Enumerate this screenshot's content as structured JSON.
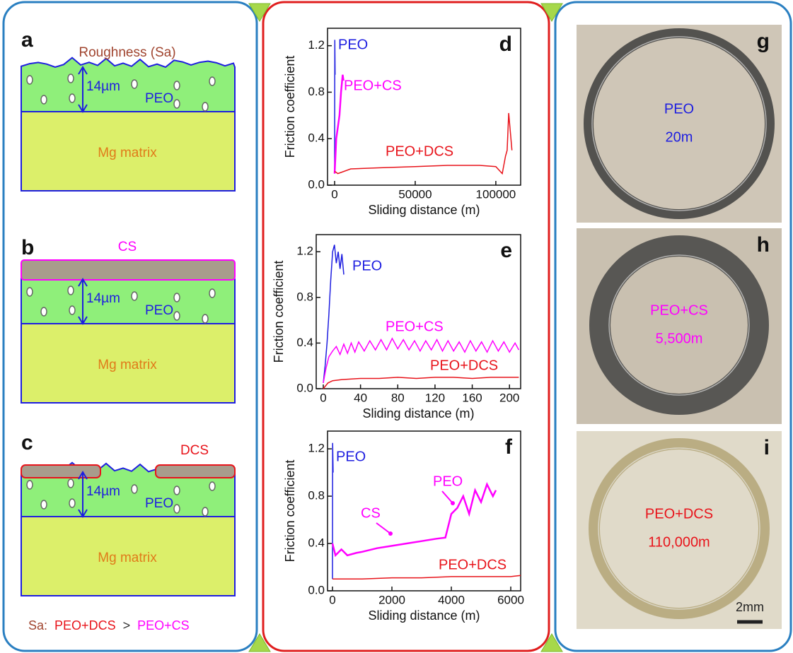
{
  "chart_data": [
    {
      "type": "line",
      "label": "d",
      "x_label": "Sliding distance (m)",
      "y_label": "Friction coefficient",
      "xlim": [
        -4400,
        115400
      ],
      "ylim": [
        0,
        1.35
      ],
      "xticks": [
        0,
        50000,
        100000
      ],
      "yticks": [
        {
          "value": 0,
          "label": "0.0"
        },
        0.4,
        0.8,
        1.2
      ],
      "series": [
        {
          "name": "PEO",
          "color": "#1e1ee0",
          "x": [
            0,
            100,
            300
          ],
          "values": [
            0.1,
            1.25,
            0.95
          ]
        },
        {
          "name": "PEO+CS",
          "color": "#ff00ff",
          "x": [
            0,
            500,
            1000,
            2000,
            3000,
            4000,
            5000,
            5500
          ],
          "values": [
            0.1,
            0.25,
            0.4,
            0.5,
            0.6,
            0.8,
            0.95,
            0.9
          ]
        },
        {
          "name": "PEO+DCS",
          "color": "#e8141b",
          "x": [
            0,
            2000,
            10000,
            30000,
            50000,
            70000,
            90000,
            100000,
            104000,
            106000,
            107000,
            108000,
            110000
          ],
          "values": [
            0.12,
            0.1,
            0.14,
            0.15,
            0.16,
            0.17,
            0.17,
            0.16,
            0.1,
            0.25,
            0.3,
            0.62,
            0.3
          ]
        }
      ]
    },
    {
      "type": "line",
      "label": "e",
      "x_label": "Sliding distance (m)",
      "y_label": "Friction coefficient",
      "xlim": [
        -7.6,
        212
      ],
      "ylim": [
        0,
        1.35
      ],
      "xticks": [
        0,
        40,
        80,
        120,
        160,
        200
      ],
      "yticks": [
        {
          "value": 0,
          "label": "0.0"
        },
        0.4,
        0.8,
        1.2
      ],
      "series": [
        {
          "name": "PEO",
          "color": "#1e1ee0",
          "x": [
            0,
            2,
            4,
            6,
            8,
            10,
            12,
            14,
            16,
            18,
            20,
            22
          ],
          "values": [
            0.05,
            0.2,
            0.4,
            0.65,
            0.95,
            1.2,
            1.26,
            1.1,
            1.2,
            1.05,
            1.18,
            1.0
          ]
        },
        {
          "name": "PEO+CS",
          "color": "#ff00ff",
          "x": [
            0,
            3,
            6,
            10,
            14,
            18,
            22,
            26,
            30,
            34,
            38,
            44,
            50,
            56,
            62,
            68,
            74,
            80,
            86,
            92,
            98,
            104,
            110,
            116,
            122,
            128,
            134,
            140,
            146,
            152,
            158,
            164,
            170,
            176,
            182,
            188,
            194,
            200,
            206,
            210
          ],
          "values": [
            0.05,
            0.18,
            0.28,
            0.33,
            0.37,
            0.3,
            0.39,
            0.31,
            0.4,
            0.32,
            0.41,
            0.33,
            0.42,
            0.34,
            0.43,
            0.34,
            0.44,
            0.35,
            0.43,
            0.34,
            0.42,
            0.33,
            0.42,
            0.34,
            0.43,
            0.33,
            0.42,
            0.33,
            0.41,
            0.32,
            0.42,
            0.33,
            0.41,
            0.32,
            0.42,
            0.33,
            0.41,
            0.32,
            0.4,
            0.34
          ]
        },
        {
          "name": "PEO+DCS",
          "color": "#e8141b",
          "x": [
            0,
            5,
            10,
            20,
            40,
            60,
            80,
            100,
            120,
            140,
            160,
            180,
            200,
            210
          ],
          "values": [
            0.0,
            0.05,
            0.07,
            0.08,
            0.09,
            0.09,
            0.1,
            0.09,
            0.1,
            0.1,
            0.09,
            0.1,
            0.1,
            0.1
          ]
        }
      ]
    },
    {
      "type": "line",
      "label": "f",
      "x_label": "Sliding distance (m)",
      "y_label": "Friction coefficient",
      "xlim": [
        -167,
        6333
      ],
      "ylim": [
        0,
        1.35
      ],
      "xticks": [
        0,
        2000,
        4000,
        6000
      ],
      "yticks": [
        {
          "value": 0,
          "label": "0.0"
        },
        0.4,
        0.8,
        1.2
      ],
      "annotations": [
        "CS",
        "PEO"
      ],
      "series": [
        {
          "name": "PEO",
          "color": "#1e1ee0",
          "x": [
            0,
            5,
            20
          ],
          "values": [
            0.1,
            1.25,
            1.0
          ]
        },
        {
          "name": "PEO+CS",
          "color": "#ff00ff",
          "x": [
            0,
            100,
            300,
            500,
            800,
            1000,
            1500,
            2000,
            2500,
            3000,
            3500,
            3800,
            3900,
            4000,
            4200,
            4400,
            4600,
            4800,
            5000,
            5200,
            5400,
            5500
          ],
          "values": [
            0.4,
            0.3,
            0.35,
            0.3,
            0.32,
            0.33,
            0.36,
            0.38,
            0.4,
            0.42,
            0.44,
            0.45,
            0.55,
            0.65,
            0.7,
            0.8,
            0.65,
            0.85,
            0.75,
            0.9,
            0.8,
            0.85
          ]
        },
        {
          "name": "PEO+DCS",
          "color": "#e8141b",
          "x": [
            0,
            1000,
            2000,
            3000,
            4000,
            5000,
            6000,
            6333
          ],
          "values": [
            0.1,
            0.1,
            0.11,
            0.11,
            0.12,
            0.12,
            0.12,
            0.13
          ]
        }
      ]
    }
  ],
  "schematics": [
    {
      "letter": "a",
      "top": "Roughness (Sa)",
      "thickness": "14µm",
      "layer": "PEO",
      "substrate": "Mg matrix"
    },
    {
      "letter": "b",
      "top": "CS",
      "thickness": "14µm",
      "layer": "PEO",
      "substrate": "Mg matrix"
    },
    {
      "letter": "c",
      "top": "DCS",
      "thickness": "14µm",
      "layer": "PEO",
      "substrate": "Mg matrix"
    }
  ],
  "note": [
    "Sa:",
    "PEO+DCS",
    ">",
    "PEO+CS"
  ],
  "photos": [
    {
      "letter": "g",
      "name": "PEO",
      "distance": "20m"
    },
    {
      "letter": "h",
      "name": "PEO+CS",
      "distance": "5,500m"
    },
    {
      "letter": "i",
      "name": "PEO+DCS",
      "distance": "110,000m"
    }
  ],
  "scale_bar": "2mm"
}
